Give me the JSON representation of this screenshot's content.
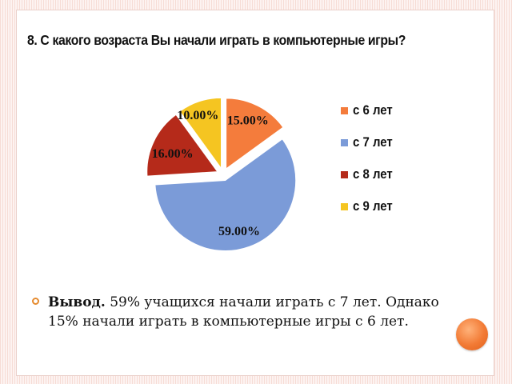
{
  "slide": {
    "title": "8. С какого возраста Вы начали играть в компьютерные игры?",
    "conclusion": {
      "lead": "Вывод.",
      "text": " 59% учащихся начали играть с 7 лет. Однако 15% начали играть в компьютерные игры с 6 лет."
    }
  },
  "chart_data": {
    "type": "pie",
    "title": "8. С какого возраста Вы начали играть в компьютерные игры?",
    "categories": [
      "с 6 лет",
      "с 7 лет",
      "с 8 лет",
      "с 9 лет"
    ],
    "values": [
      15,
      59,
      16,
      10
    ],
    "data_labels": [
      "15.00%",
      "59.00%",
      "16.00%",
      "10.00%"
    ],
    "colors": [
      "#f47c3c",
      "#7b9bd8",
      "#b52a1a",
      "#f5c521"
    ],
    "legend": "right",
    "exploded": true
  }
}
